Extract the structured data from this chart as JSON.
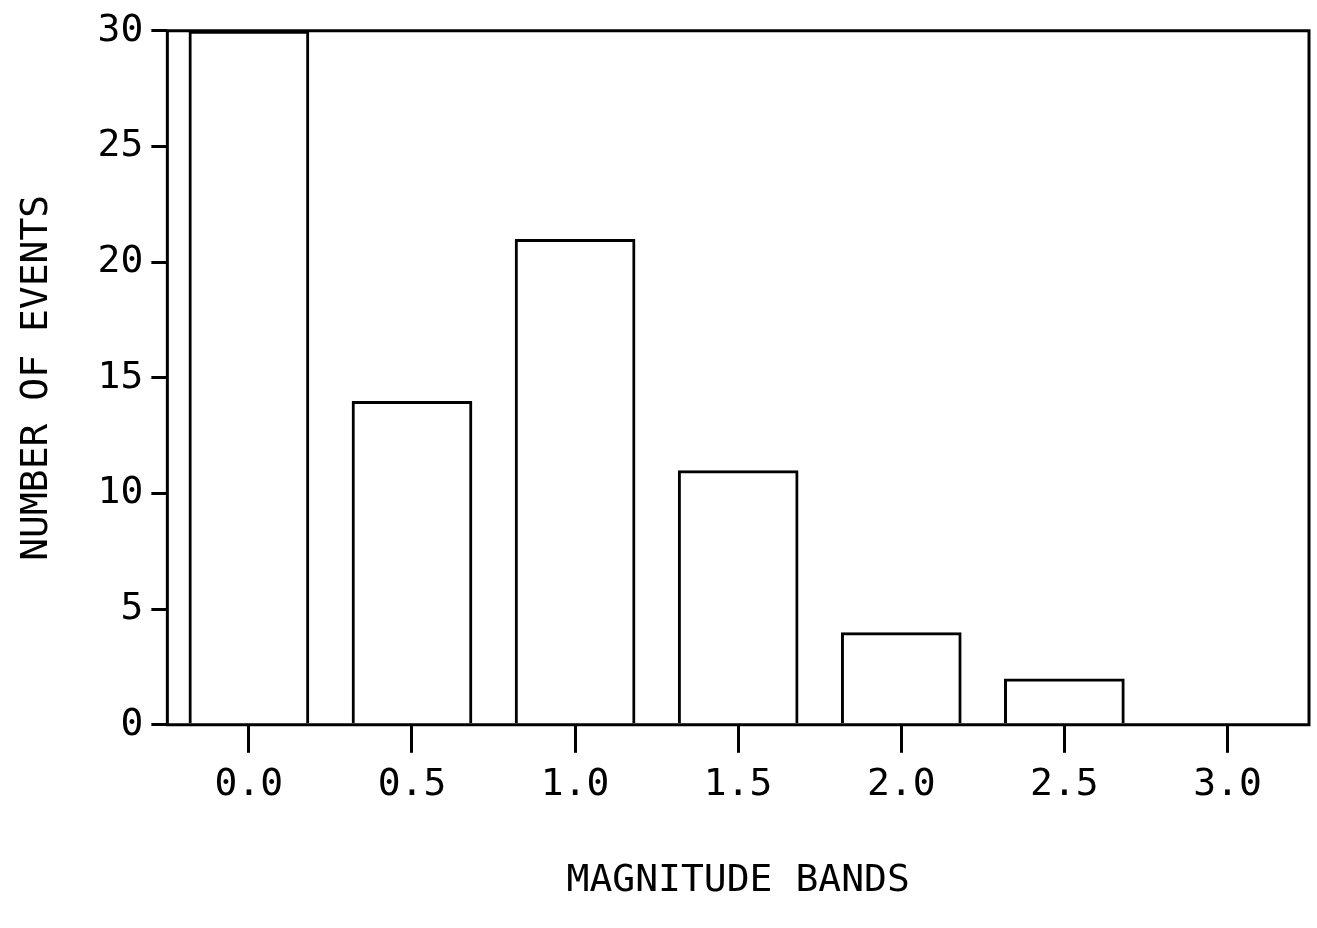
{
  "chart_data": {
    "type": "bar",
    "xlabel": "MAGNITUDE BANDS",
    "ylabel": "NUMBER OF EVENTS",
    "categories": [
      "0.0",
      "0.5",
      "1.0",
      "1.5",
      "2.0",
      "2.5",
      "3.0"
    ],
    "values": [
      30,
      14,
      21,
      11,
      4,
      2,
      0
    ],
    "color": "#000000",
    "ylim": [
      0,
      30
    ],
    "yticks": [
      0,
      5,
      10,
      15,
      20,
      25,
      30
    ],
    "grid": false,
    "legend": false
  }
}
